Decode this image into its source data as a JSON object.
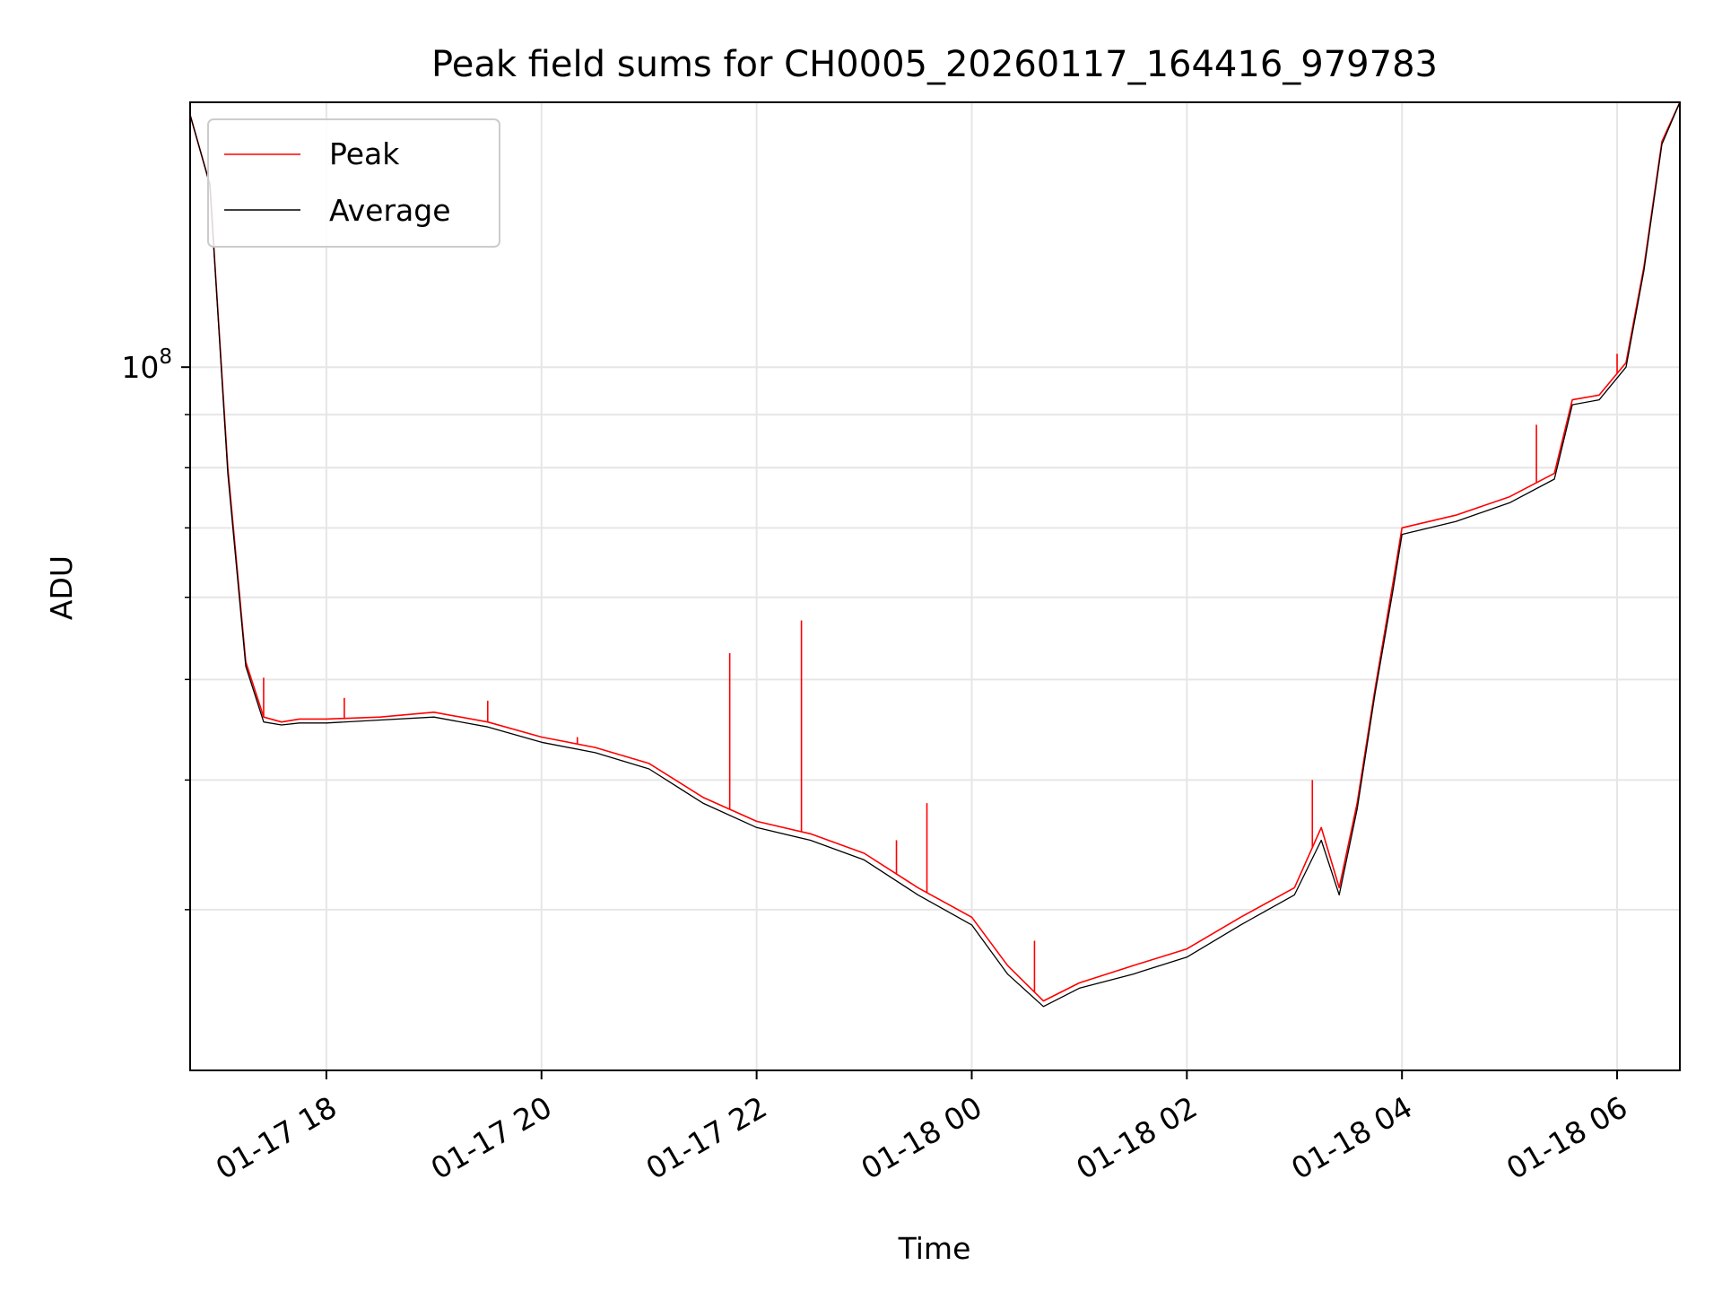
{
  "chart_data": {
    "type": "line",
    "title": "Peak field sums for CH0005_20260117_164416_979783",
    "xlabel": "Time",
    "ylabel": "ADU",
    "yscale": "log",
    "xlim": [
      "2026-01-17 16:44",
      "2026-01-18 06:35"
    ],
    "ylim": [
      21000000,
      180000000
    ],
    "grid": true,
    "legend_position": "top-left",
    "x_ticks": [
      "01-17 18",
      "01-17 20",
      "01-17 22",
      "01-18 00",
      "01-18 02",
      "01-18 04",
      "01-18 06"
    ],
    "y_tick_label": {
      "base": "10",
      "exponent": "8",
      "value": 100000000
    },
    "series": [
      {
        "name": "Peak",
        "color": "#ff0000",
        "times": [
          "2026-01-17 16:44",
          "2026-01-17 16:55",
          "2026-01-17 17:05",
          "2026-01-17 17:15",
          "2026-01-17 17:25",
          "2026-01-17 17:35",
          "2026-01-17 17:45",
          "2026-01-17 18:00",
          "2026-01-17 18:30",
          "2026-01-17 19:00",
          "2026-01-17 19:30",
          "2026-01-17 20:00",
          "2026-01-17 20:30",
          "2026-01-17 21:00",
          "2026-01-17 21:30",
          "2026-01-17 22:00",
          "2026-01-17 22:30",
          "2026-01-17 23:00",
          "2026-01-17 23:30",
          "2026-01-18 00:00",
          "2026-01-18 00:20",
          "2026-01-18 00:40",
          "2026-01-18 01:00",
          "2026-01-18 01:30",
          "2026-01-18 02:00",
          "2026-01-18 02:30",
          "2026-01-18 03:00",
          "2026-01-18 03:15",
          "2026-01-18 03:25",
          "2026-01-18 03:35",
          "2026-01-18 03:45",
          "2026-01-18 03:55",
          "2026-01-18 04:00",
          "2026-01-18 04:30",
          "2026-01-18 05:00",
          "2026-01-18 05:25",
          "2026-01-18 05:35",
          "2026-01-18 05:50",
          "2026-01-18 06:05",
          "2026-01-18 06:15",
          "2026-01-18 06:25",
          "2026-01-18 06:35"
        ],
        "values": [
          175000000,
          150000000,
          80000000,
          52000000,
          46000000,
          45500000,
          45800000,
          45800000,
          46000000,
          46500000,
          45500000,
          44000000,
          43000000,
          41500000,
          38500000,
          36500000,
          35500000,
          34000000,
          31500000,
          29500000,
          26500000,
          24500000,
          25500000,
          26500000,
          27500000,
          29500000,
          31500000,
          36000000,
          31500000,
          38000000,
          49000000,
          62000000,
          70000000,
          72000000,
          75000000,
          79000000,
          93000000,
          94000000,
          101000000,
          125000000,
          165000000,
          180000000
        ],
        "spikes": [
          {
            "time": "2026-01-17 17:25",
            "value": 50200000
          },
          {
            "time": "2026-01-17 18:10",
            "value": 48000000
          },
          {
            "time": "2026-01-17 19:30",
            "value": 47700000
          },
          {
            "time": "2026-01-17 20:20",
            "value": 44000000
          },
          {
            "time": "2026-01-17 21:45",
            "value": 53000000
          },
          {
            "time": "2026-01-17 22:25",
            "value": 57000000
          },
          {
            "time": "2026-01-17 23:18",
            "value": 35000000
          },
          {
            "time": "2026-01-17 23:35",
            "value": 38000000
          },
          {
            "time": "2026-01-18 00:35",
            "value": 28000000
          },
          {
            "time": "2026-01-18 03:10",
            "value": 40000000
          },
          {
            "time": "2026-01-18 05:15",
            "value": 88000000
          },
          {
            "time": "2026-01-18 06:00",
            "value": 103000000
          }
        ]
      },
      {
        "name": "Average",
        "color": "#000000",
        "times": [
          "2026-01-17 16:44",
          "2026-01-17 16:55",
          "2026-01-17 17:05",
          "2026-01-17 17:15",
          "2026-01-17 17:25",
          "2026-01-17 17:35",
          "2026-01-17 17:45",
          "2026-01-17 18:00",
          "2026-01-17 18:30",
          "2026-01-17 19:00",
          "2026-01-17 19:30",
          "2026-01-17 20:00",
          "2026-01-17 20:30",
          "2026-01-17 21:00",
          "2026-01-17 21:30",
          "2026-01-17 22:00",
          "2026-01-17 22:30",
          "2026-01-17 23:00",
          "2026-01-17 23:30",
          "2026-01-18 00:00",
          "2026-01-18 00:20",
          "2026-01-18 00:40",
          "2026-01-18 01:00",
          "2026-01-18 01:30",
          "2026-01-18 02:00",
          "2026-01-18 02:30",
          "2026-01-18 03:00",
          "2026-01-18 03:15",
          "2026-01-18 03:25",
          "2026-01-18 03:35",
          "2026-01-18 03:45",
          "2026-01-18 03:55",
          "2026-01-18 04:00",
          "2026-01-18 04:30",
          "2026-01-18 05:00",
          "2026-01-18 05:25",
          "2026-01-18 05:35",
          "2026-01-18 05:50",
          "2026-01-18 06:05",
          "2026-01-18 06:15",
          "2026-01-18 06:25",
          "2026-01-18 06:35"
        ],
        "values": [
          175000000,
          150000000,
          79000000,
          51500000,
          45500000,
          45200000,
          45400000,
          45400000,
          45700000,
          46000000,
          45000000,
          43500000,
          42500000,
          41000000,
          38000000,
          36000000,
          35000000,
          33500000,
          31000000,
          29000000,
          26000000,
          24200000,
          25200000,
          26000000,
          27000000,
          29000000,
          31000000,
          35000000,
          31000000,
          37500000,
          48500000,
          61000000,
          69000000,
          71000000,
          74000000,
          78000000,
          92000000,
          93000000,
          100000000,
          124000000,
          164000000,
          180000000
        ]
      }
    ]
  }
}
